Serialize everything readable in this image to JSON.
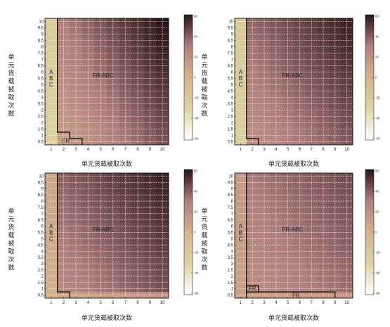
{
  "chart_data": [
    {
      "type": "heatmap",
      "xlabel": "单元货载被取次数",
      "ylabel": [
        "单",
        "元",
        "货",
        "载",
        "被",
        "取",
        "次",
        "数"
      ],
      "x_ticks": [
        "1",
        "2",
        "3",
        "4",
        "5",
        "6",
        "7",
        "8",
        "9",
        "10"
      ],
      "y_ticks": [
        "0.5",
        "1",
        "1.5",
        "2",
        "2.5",
        "3",
        "3.5",
        "4",
        "4.5",
        "5",
        "5.5",
        "6",
        "6.5",
        "7",
        "7.5",
        "8",
        "8.5",
        "9",
        "9.5",
        "10"
      ],
      "colorbar_ticks": [
        "60",
        "40",
        "20",
        "0",
        "-20",
        "-40",
        "-60"
      ],
      "clim": [
        -60,
        60
      ],
      "colorbar": "pink-to-sand",
      "grid": true,
      "regions": [
        {
          "label": "ABC",
          "letters": [
            "A",
            "B",
            "C"
          ]
        },
        {
          "label": "FR-ABC"
        },
        {
          "label": "FR"
        }
      ],
      "value_range": [
        -30,
        60
      ],
      "description_values": "x=1 column near -30 to -20; values increase toward upper-right up to about 60"
    },
    {
      "type": "heatmap",
      "xlabel": "单元货载被取次数",
      "ylabel": [
        "单",
        "元",
        "货",
        "载",
        "被",
        "取",
        "次",
        "数"
      ],
      "x_ticks": [
        "1",
        "2",
        "3",
        "4",
        "5",
        "6",
        "7",
        "8",
        "9",
        "10"
      ],
      "y_ticks": [
        "0.5",
        "1",
        "1.5",
        "2",
        "2.5",
        "3",
        "3.5",
        "4",
        "4.5",
        "5",
        "5.5",
        "6",
        "6.5",
        "7",
        "7.5",
        "8",
        "8.5",
        "9",
        "9.5",
        "10"
      ],
      "colorbar_ticks": [
        "60",
        "40",
        "20",
        "0",
        "-20",
        "-40",
        "-60"
      ],
      "clim": [
        -60,
        60
      ],
      "colorbar": "pink-to-sand",
      "grid": true,
      "regions": [
        {
          "label": "ABC",
          "letters": [
            "A",
            "B",
            "C"
          ]
        },
        {
          "label": "FR-ABC"
        }
      ],
      "value_range": [
        -25,
        60
      ]
    },
    {
      "type": "heatmap",
      "xlabel": "单元货载被取次数",
      "ylabel": [
        "单",
        "元",
        "货",
        "载",
        "被",
        "取",
        "次",
        "数"
      ],
      "x_ticks": [
        "1",
        "2",
        "3",
        "4",
        "5",
        "6",
        "7",
        "8",
        "9",
        "10"
      ],
      "y_ticks": [
        "0.5",
        "1",
        "1.5",
        "2",
        "2.5",
        "3",
        "3.5",
        "4",
        "4.5",
        "5",
        "5.5",
        "6",
        "6.5",
        "7",
        "7.5",
        "8",
        "8.5",
        "9",
        "9.5",
        "10"
      ],
      "colorbar_ticks": [
        "60",
        "40",
        "20",
        "0",
        "-20",
        "-40",
        "-60"
      ],
      "clim": [
        -60,
        60
      ],
      "colorbar": "pink-to-sand",
      "grid": true,
      "regions": [
        {
          "label": "ABC",
          "letters": [
            "A",
            "B",
            "C"
          ]
        },
        {
          "label": "FR-ABC"
        }
      ],
      "value_range": [
        0,
        60
      ]
    },
    {
      "type": "heatmap",
      "xlabel": "单元货载被取次数",
      "ylabel": [
        "单",
        "元",
        "货",
        "载",
        "被",
        "取",
        "次",
        "数"
      ],
      "x_ticks": [
        "1",
        "2",
        "3",
        "4",
        "5",
        "6",
        "7",
        "8",
        "9",
        "10"
      ],
      "y_ticks": [
        "0.5",
        "1",
        "1.5",
        "2",
        "2.5",
        "3",
        "3.5",
        "4",
        "4.5",
        "5",
        "5.5",
        "6",
        "6.5",
        "7",
        "7.5",
        "8",
        "8.5",
        "9",
        "9.5",
        "10"
      ],
      "colorbar_ticks": [
        "60",
        "40",
        "20",
        "0",
        "-20",
        "-40",
        "-60"
      ],
      "clim": [
        -60,
        60
      ],
      "colorbar": "pink-to-sand",
      "grid": true,
      "regions": [
        {
          "label": "ABC",
          "letters": [
            "A",
            "B",
            "C"
          ]
        },
        {
          "label": "FR-ABC"
        },
        {
          "label": "FR"
        },
        {
          "label": "FR"
        }
      ],
      "value_range": [
        5,
        55
      ]
    }
  ]
}
